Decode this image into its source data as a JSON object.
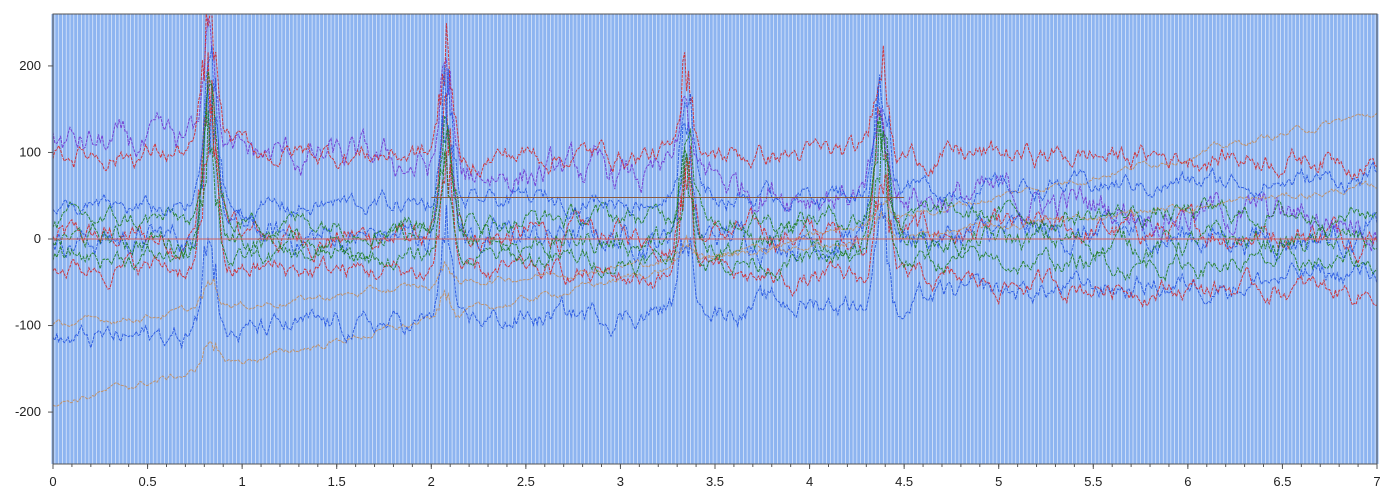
{
  "chart_data": {
    "type": "line",
    "title": "",
    "xlabel": "",
    "ylabel": "",
    "xlim": [
      0,
      7
    ],
    "ylim": [
      -260,
      260
    ],
    "x_ticks": [
      0,
      0.5,
      1,
      1.5,
      2,
      2.5,
      3,
      3.5,
      4,
      4.5,
      5,
      5.5,
      6,
      6.5,
      7
    ],
    "x_tick_labels": [
      "0",
      "0.5",
      "1",
      "1.5",
      "2",
      "2.5",
      "3",
      "3.5",
      "4",
      "4.5",
      "5",
      "5.5",
      "6",
      "6.5",
      "7"
    ],
    "y_ticks": [
      200,
      100,
      0,
      -100,
      -200
    ],
    "y_tick_labels": [
      "200",
      "100",
      "0",
      "-100",
      "-200"
    ],
    "grid": false,
    "legend": "none",
    "background_bands": {
      "color": "#8db4f0",
      "spacing_x": 0.02
    },
    "reference_lines": [
      {
        "y": 0,
        "color": "#d06060"
      },
      {
        "x_start": 2,
        "x_end": 4.5,
        "y": 48,
        "color": "#8b5a3c"
      }
    ],
    "peaks": [
      {
        "x": 0.83,
        "height": 190,
        "width": 0.05
      },
      {
        "x": 2.08,
        "height": 155,
        "width": 0.045
      },
      {
        "x": 3.35,
        "height": 135,
        "width": 0.045
      },
      {
        "x": 4.38,
        "height": 150,
        "width": 0.05
      }
    ],
    "series": [
      {
        "color": "#d62020",
        "spread": 35,
        "offset_start": 0,
        "offset_end": 10,
        "peak_scale": 1.0
      },
      {
        "color": "#2050e0",
        "spread": 38,
        "offset_start": 0,
        "offset_end": 5,
        "peak_scale": 1.1
      },
      {
        "color": "#1a7a1a",
        "spread": 32,
        "offset_start": 0,
        "offset_end": -5,
        "peak_scale": 0.85
      },
      {
        "color": "#7030d0",
        "spread": 45,
        "offset_start": 110,
        "offset_end": 20,
        "peak_scale": 0.7
      },
      {
        "color": "#c48a55",
        "spread": 10,
        "offset_start": -190,
        "offset_end": 145,
        "peak_scale": 0.2
      },
      {
        "color": "#c48a55",
        "spread": 10,
        "offset_start": -100,
        "offset_end": 60,
        "peak_scale": 0.2
      },
      {
        "color": "#d62020",
        "spread": 30,
        "offset_start": 100,
        "offset_end": 95,
        "peak_scale": 0.9
      },
      {
        "color": "#2050e0",
        "spread": 30,
        "offset_start": -120,
        "offset_end": -40,
        "peak_scale": 0.8
      },
      {
        "color": "#1a7a1a",
        "spread": 28,
        "offset_start": 20,
        "offset_end": 30,
        "peak_scale": 0.9
      },
      {
        "color": "#d62020",
        "spread": 28,
        "offset_start": -30,
        "offset_end": -60,
        "peak_scale": 0.95
      },
      {
        "color": "#2050e0",
        "spread": 26,
        "offset_start": 30,
        "offset_end": 70,
        "peak_scale": 1.0
      },
      {
        "color": "#1a7a1a",
        "spread": 26,
        "offset_start": -20,
        "offset_end": -30,
        "peak_scale": 0.8
      }
    ]
  }
}
